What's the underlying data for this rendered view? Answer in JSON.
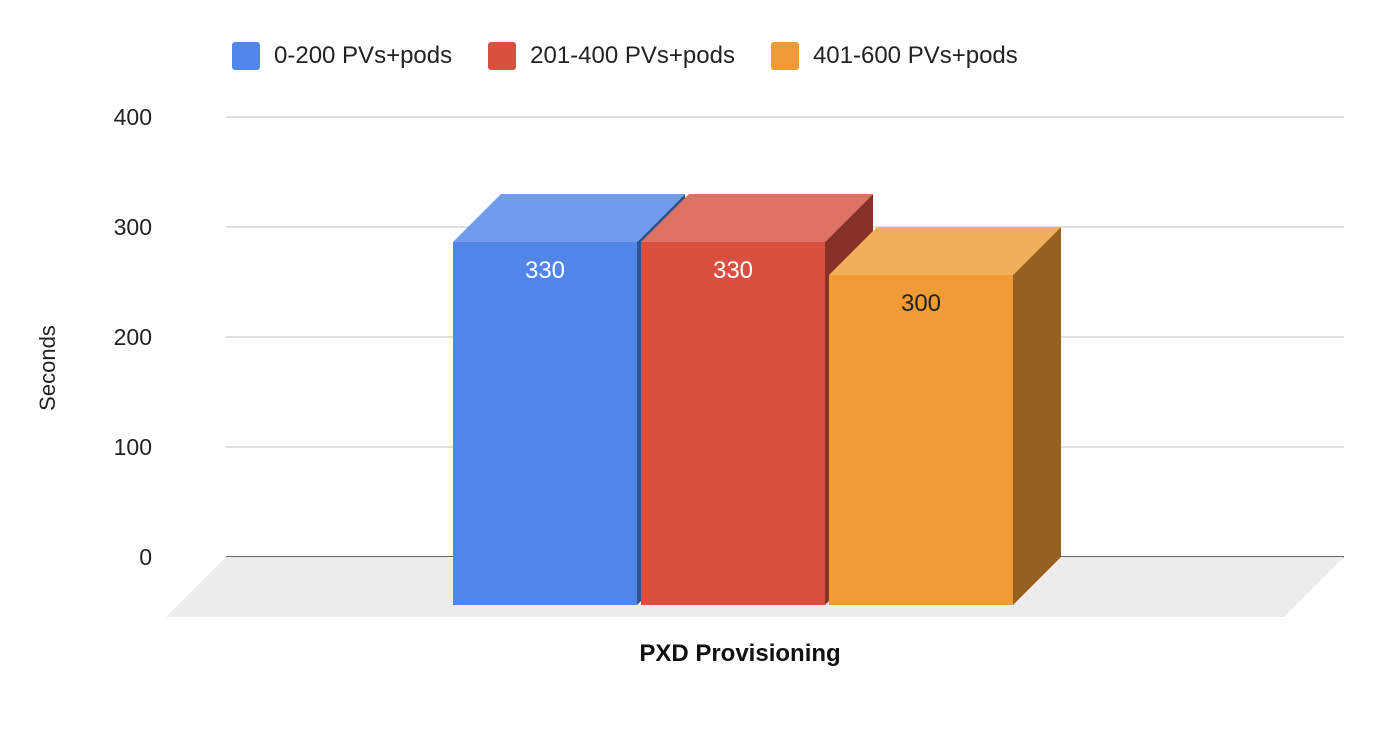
{
  "chart_data": {
    "type": "bar",
    "title": "",
    "categories": [
      "PXD Provisioning"
    ],
    "xlabel": "PXD Provisioning",
    "ylabel": "Seconds",
    "ylim": [
      0,
      400
    ],
    "yticks": [
      0,
      100,
      200,
      300,
      400
    ],
    "grid": true,
    "legend_position": "top",
    "style": "3d",
    "series": [
      {
        "name": "0-200 PVs+pods",
        "values": [
          330
        ],
        "color": "#4f86e8",
        "label_color": "#ffffff"
      },
      {
        "name": "201-400 PVs+pods",
        "values": [
          330
        ],
        "color": "#d95040",
        "label_color": "#ffffff"
      },
      {
        "name": "401-600 PVs+pods",
        "values": [
          300
        ],
        "color": "#f09c36",
        "label_color": "#222222"
      }
    ]
  }
}
